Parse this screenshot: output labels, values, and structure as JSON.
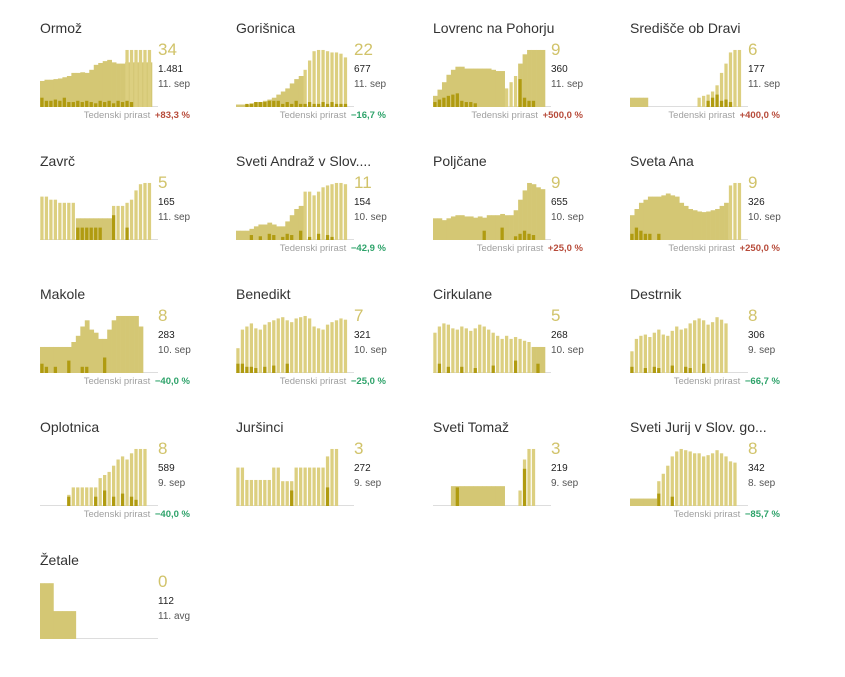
{
  "colors": {
    "area": "#d4c774",
    "bar": "#dccf80",
    "dark": "#b09b10",
    "baseline": "#dddddd",
    "up": "#b74b3a",
    "down": "#2ea36a"
  },
  "growth_label": "Tedenski prirast",
  "tiles": [
    {
      "name": "Ormož",
      "big": "34",
      "total": "1.481",
      "date": "11. sep",
      "growth": "+83,3 %",
      "dir": "up",
      "area": [
        0.42,
        0.44,
        0.44,
        0.45,
        0.46,
        0.48,
        0.5,
        0.55,
        0.55,
        0.56,
        0.55,
        0.6,
        0.68,
        0.71,
        0.74,
        0.76,
        0.72,
        0.7,
        0.7,
        0.72,
        0.72,
        0.72,
        0.72,
        0.72,
        0.72
      ],
      "bars": [
        0,
        0,
        0,
        0,
        0,
        0,
        0,
        0,
        0,
        0,
        0,
        0,
        0,
        0,
        0,
        0,
        0,
        0,
        0,
        0.92,
        0.92,
        0.92,
        0.92,
        0.92,
        0.92
      ],
      "dark": [
        0.15,
        0.1,
        0.1,
        0.12,
        0.1,
        0.15,
        0.08,
        0.08,
        0.1,
        0.08,
        0.1,
        0.08,
        0.06,
        0.1,
        0.08,
        0.1,
        0.06,
        0.1,
        0.08,
        0.1,
        0.08,
        0,
        0,
        0,
        0
      ]
    },
    {
      "name": "Gorišnica",
      "big": "22",
      "total": "677",
      "date": "11. sep",
      "growth": "−16,7 %",
      "dir": "down",
      "area": [
        0.04,
        0.04,
        0.04,
        0.06,
        0.08,
        0.08,
        0.1,
        0.12,
        0.15,
        0.2,
        0.25,
        0.3,
        0.38,
        0.45,
        0.5,
        0,
        0,
        0,
        0,
        0,
        0,
        0,
        0,
        0,
        0
      ],
      "bars": [
        0,
        0,
        0,
        0,
        0,
        0,
        0,
        0,
        0,
        0,
        0,
        0,
        0,
        0,
        0,
        0.6,
        0.75,
        0.9,
        0.92,
        0.92,
        0.9,
        0.88,
        0.88,
        0.86,
        0.8
      ],
      "dark": [
        0,
        0,
        0.05,
        0.05,
        0.08,
        0.08,
        0.08,
        0.1,
        0.1,
        0.1,
        0.05,
        0.08,
        0.05,
        0.1,
        0.05,
        0.05,
        0.08,
        0.05,
        0.05,
        0.08,
        0.05,
        0.08,
        0.05,
        0.05,
        0.05
      ]
    },
    {
      "name": "Lovrenc na Pohorju",
      "big": "9",
      "total": "360",
      "date": "11. sep",
      "growth": "+500,0 %",
      "dir": "up",
      "area": [
        0.18,
        0.28,
        0.4,
        0.52,
        0.6,
        0.65,
        0.65,
        0.62,
        0.62,
        0.62,
        0.62,
        0.62,
        0.62,
        0.6,
        0.58,
        0.58,
        0,
        0,
        0,
        0.7,
        0.85,
        0.92,
        0.92,
        0.92,
        0.92
      ],
      "bars": [
        0,
        0,
        0,
        0,
        0,
        0,
        0,
        0,
        0,
        0,
        0,
        0,
        0,
        0,
        0,
        0,
        0.3,
        0.4,
        0.5,
        0,
        0,
        0,
        0,
        0,
        0
      ],
      "dark": [
        0.08,
        0.12,
        0.15,
        0.18,
        0.2,
        0.22,
        0.1,
        0.08,
        0.08,
        0.06,
        0,
        0,
        0,
        0,
        0,
        0,
        0,
        0,
        0,
        0.45,
        0.15,
        0.1,
        0.1,
        0,
        0
      ]
    },
    {
      "name": "Središče ob Dravi",
      "big": "6",
      "total": "177",
      "date": "11. sep",
      "growth": "+400,0 %",
      "dir": "up",
      "area": [
        0.15,
        0.15,
        0.15,
        0.15,
        0,
        0,
        0,
        0,
        0,
        0,
        0,
        0,
        0,
        0,
        0,
        0,
        0,
        0,
        0,
        0,
        0,
        0,
        0,
        0,
        0
      ],
      "bars": [
        0,
        0,
        0,
        0,
        0,
        0,
        0,
        0,
        0,
        0,
        0,
        0,
        0,
        0,
        0,
        0.15,
        0.18,
        0.2,
        0.25,
        0.35,
        0.55,
        0.7,
        0.88,
        0.92,
        0.92
      ],
      "dark": [
        0,
        0,
        0,
        0,
        0,
        0,
        0,
        0,
        0,
        0,
        0,
        0,
        0,
        0,
        0,
        0,
        0,
        0.1,
        0.15,
        0.2,
        0.1,
        0.12,
        0.08,
        0,
        0
      ]
    },
    {
      "name": "Zavrč",
      "big": "5",
      "total": "165",
      "date": "11. sep",
      "growth": "",
      "dir": "up",
      "area": [
        0,
        0,
        0,
        0,
        0,
        0,
        0,
        0,
        0.35,
        0.35,
        0.35,
        0.35,
        0.35,
        0.35,
        0.35,
        0.35,
        0,
        0,
        0,
        0,
        0,
        0,
        0,
        0,
        0
      ],
      "bars": [
        0.7,
        0.7,
        0.65,
        0.65,
        0.6,
        0.6,
        0.6,
        0.6,
        0,
        0,
        0,
        0,
        0,
        0,
        0,
        0,
        0.55,
        0.55,
        0.55,
        0.6,
        0.65,
        0.8,
        0.9,
        0.92,
        0.92
      ],
      "dark": [
        0,
        0,
        0,
        0,
        0,
        0,
        0,
        0,
        0.2,
        0.2,
        0.2,
        0.2,
        0.2,
        0.2,
        0,
        0,
        0.4,
        0,
        0,
        0.2,
        0,
        0,
        0,
        0,
        0
      ]
    },
    {
      "name": "Sveti Andraž v Slov....",
      "big": "11",
      "total": "154",
      "date": "10. sep",
      "growth": "−42,9 %",
      "dir": "down",
      "area": [
        0.15,
        0.15,
        0.15,
        0.18,
        0.22,
        0.25,
        0.25,
        0.28,
        0.25,
        0.22,
        0.22,
        0.3,
        0.4,
        0.5,
        0.55,
        0,
        0,
        0,
        0,
        0,
        0,
        0,
        0,
        0,
        0
      ],
      "bars": [
        0,
        0,
        0,
        0,
        0,
        0,
        0,
        0,
        0,
        0,
        0,
        0,
        0,
        0,
        0,
        0.78,
        0.78,
        0.72,
        0.78,
        0.85,
        0.88,
        0.9,
        0.92,
        0.92,
        0.9
      ],
      "dark": [
        0,
        0,
        0,
        0.08,
        0,
        0.06,
        0,
        0.1,
        0.08,
        0,
        0.05,
        0.1,
        0.08,
        0,
        0.15,
        0,
        0.05,
        0,
        0.1,
        0,
        0.08,
        0.05,
        0,
        0,
        0
      ]
    },
    {
      "name": "Poljčane",
      "big": "9",
      "total": "655",
      "date": "10. sep",
      "growth": "+25,0 %",
      "dir": "up",
      "area": [
        0.35,
        0.35,
        0.32,
        0.35,
        0.38,
        0.4,
        0.4,
        0.38,
        0.38,
        0.36,
        0.38,
        0.36,
        0.4,
        0.4,
        0.4,
        0.42,
        0.4,
        0.4,
        0.48,
        0.65,
        0.8,
        0.92,
        0.9,
        0.85,
        0.82
      ],
      "bars": [
        0,
        0,
        0,
        0,
        0,
        0,
        0,
        0,
        0,
        0,
        0,
        0,
        0,
        0,
        0,
        0,
        0,
        0,
        0,
        0,
        0,
        0,
        0,
        0,
        0
      ],
      "dark": [
        0,
        0,
        0,
        0,
        0,
        0,
        0,
        0,
        0,
        0,
        0,
        0.15,
        0,
        0,
        0,
        0.2,
        0,
        0,
        0.06,
        0.1,
        0.15,
        0.1,
        0.08,
        0,
        0
      ]
    },
    {
      "name": "Sveta Ana",
      "big": "9",
      "total": "326",
      "date": "10. sep",
      "growth": "+250,0 %",
      "dir": "up",
      "area": [
        0.4,
        0.5,
        0.6,
        0.65,
        0.7,
        0.7,
        0.7,
        0.72,
        0.75,
        0.72,
        0.7,
        0.6,
        0.55,
        0.5,
        0.48,
        0.46,
        0.45,
        0.46,
        0.48,
        0.5,
        0.55,
        0.6,
        0,
        0,
        0
      ],
      "bars": [
        0,
        0,
        0,
        0,
        0,
        0,
        0,
        0,
        0,
        0,
        0,
        0,
        0,
        0,
        0,
        0,
        0,
        0,
        0,
        0,
        0,
        0,
        0.88,
        0.92,
        0.92
      ],
      "dark": [
        0.1,
        0.2,
        0.15,
        0.1,
        0.1,
        0,
        0.1,
        0,
        0,
        0,
        0,
        0,
        0,
        0,
        0,
        0,
        0,
        0,
        0,
        0,
        0,
        0,
        0,
        0,
        0
      ]
    },
    {
      "name": "Makole",
      "big": "8",
      "total": "283",
      "date": "10. sep",
      "growth": "−40,0 %",
      "dir": "down",
      "area": [
        0.42,
        0.42,
        0.42,
        0.42,
        0.42,
        0.42,
        0.42,
        0.5,
        0.6,
        0.75,
        0.85,
        0.7,
        0.65,
        0.55,
        0.55,
        0.7,
        0.85,
        0.92,
        0.92,
        0.92,
        0.92,
        0.92,
        0.75,
        0,
        0
      ],
      "bars": [
        0,
        0,
        0,
        0,
        0,
        0,
        0,
        0,
        0,
        0,
        0,
        0,
        0,
        0,
        0,
        0,
        0,
        0,
        0,
        0,
        0,
        0,
        0,
        0,
        0
      ],
      "dark": [
        0.15,
        0.1,
        0,
        0.1,
        0,
        0,
        0.2,
        0,
        0,
        0.1,
        0.1,
        0,
        0,
        0,
        0.25,
        0,
        0,
        0,
        0,
        0,
        0,
        0,
        0,
        0,
        0
      ]
    },
    {
      "name": "Benedikt",
      "big": "7",
      "total": "321",
      "date": "10. sep",
      "growth": "−25,0 %",
      "dir": "down",
      "area": [
        0,
        0,
        0,
        0,
        0,
        0,
        0,
        0,
        0,
        0,
        0,
        0,
        0,
        0,
        0,
        0,
        0,
        0,
        0,
        0,
        0,
        0,
        0,
        0,
        0
      ],
      "bars": [
        0.4,
        0.7,
        0.75,
        0.8,
        0.72,
        0.7,
        0.78,
        0.82,
        0.85,
        0.88,
        0.9,
        0.85,
        0.82,
        0.88,
        0.9,
        0.92,
        0.88,
        0.75,
        0.72,
        0.7,
        0.78,
        0.82,
        0.85,
        0.88,
        0.86
      ],
      "dark": [
        0.15,
        0.15,
        0.1,
        0.1,
        0.08,
        0,
        0.1,
        0,
        0.12,
        0,
        0,
        0.15,
        0,
        0,
        0,
        0,
        0,
        0,
        0,
        0,
        0,
        0,
        0,
        0,
        0
      ]
    },
    {
      "name": "Cirkulane",
      "big": "5",
      "total": "268",
      "date": "10. sep",
      "growth": "",
      "dir": "down",
      "area": [
        0,
        0,
        0,
        0,
        0,
        0,
        0,
        0,
        0,
        0,
        0,
        0,
        0,
        0,
        0,
        0,
        0,
        0,
        0,
        0,
        0,
        0,
        0.42,
        0.42,
        0.42
      ],
      "bars": [
        0.65,
        0.75,
        0.8,
        0.78,
        0.72,
        0.7,
        0.75,
        0.72,
        0.68,
        0.72,
        0.78,
        0.75,
        0.7,
        0.65,
        0.6,
        0.55,
        0.6,
        0.55,
        0.58,
        0.55,
        0.52,
        0.5,
        0,
        0,
        0
      ],
      "dark": [
        0,
        0.15,
        0,
        0.1,
        0,
        0,
        0.1,
        0,
        0,
        0.08,
        0,
        0,
        0,
        0.12,
        0,
        0,
        0,
        0,
        0.2,
        0,
        0,
        0,
        0,
        0.15,
        0
      ]
    },
    {
      "name": "Destrnik",
      "big": "8",
      "total": "306",
      "date": "9. sep",
      "growth": "−66,7 %",
      "dir": "down",
      "area": [
        0,
        0,
        0,
        0,
        0,
        0,
        0,
        0,
        0,
        0,
        0,
        0,
        0,
        0,
        0,
        0,
        0,
        0,
        0,
        0,
        0,
        0,
        0,
        0,
        0
      ],
      "bars": [
        0.35,
        0.55,
        0.6,
        0.62,
        0.58,
        0.65,
        0.7,
        0.62,
        0.6,
        0.68,
        0.75,
        0.7,
        0.72,
        0.8,
        0.85,
        0.88,
        0.85,
        0.78,
        0.82,
        0.9,
        0.86,
        0.8,
        0,
        0,
        0
      ],
      "dark": [
        0.1,
        0,
        0,
        0.08,
        0,
        0.1,
        0.08,
        0,
        0,
        0.12,
        0,
        0,
        0.1,
        0.08,
        0,
        0,
        0.15,
        0,
        0,
        0,
        0,
        0,
        0,
        0,
        0
      ]
    },
    {
      "name": "Oplotnica",
      "big": "8",
      "total": "589",
      "date": "9. sep",
      "growth": "−40,0 %",
      "dir": "down",
      "area": [
        0,
        0,
        0,
        0,
        0,
        0,
        0,
        0,
        0,
        0,
        0,
        0,
        0,
        0,
        0,
        0,
        0,
        0,
        0,
        0,
        0,
        0,
        0,
        0,
        0
      ],
      "bars": [
        0,
        0,
        0,
        0,
        0,
        0,
        0.18,
        0.3,
        0.3,
        0.3,
        0.3,
        0.3,
        0.3,
        0.45,
        0.5,
        0.55,
        0.65,
        0.75,
        0.8,
        0.75,
        0.85,
        0.92,
        0.92,
        0.92,
        0
      ],
      "dark": [
        0,
        0,
        0,
        0,
        0,
        0,
        0.15,
        0,
        0,
        0,
        0,
        0,
        0.15,
        0,
        0.25,
        0,
        0.15,
        0,
        0.2,
        0,
        0.15,
        0.1,
        0,
        0,
        0
      ]
    },
    {
      "name": "Juršinci",
      "big": "3",
      "total": "272",
      "date": "9. sep",
      "growth": "",
      "dir": "down",
      "area": [
        0,
        0,
        0,
        0,
        0,
        0,
        0,
        0,
        0,
        0,
        0,
        0,
        0,
        0,
        0,
        0,
        0,
        0,
        0,
        0,
        0,
        0,
        0,
        0,
        0
      ],
      "bars": [
        0.62,
        0.62,
        0.42,
        0.42,
        0.42,
        0.42,
        0.42,
        0.42,
        0.62,
        0.62,
        0.4,
        0.4,
        0.4,
        0.62,
        0.62,
        0.62,
        0.62,
        0.62,
        0.62,
        0.62,
        0.8,
        0.92,
        0.92,
        0,
        0
      ],
      "dark": [
        0,
        0,
        0,
        0,
        0,
        0,
        0,
        0,
        0,
        0,
        0,
        0,
        0.25,
        0,
        0,
        0,
        0,
        0,
        0,
        0,
        0.3,
        0,
        0,
        0,
        0
      ]
    },
    {
      "name": "Sveti Tomaž",
      "big": "3",
      "total": "219",
      "date": "9. sep",
      "growth": "",
      "dir": "down",
      "area": [
        0,
        0,
        0,
        0,
        0.32,
        0.32,
        0.32,
        0.32,
        0.32,
        0.32,
        0.32,
        0.32,
        0.32,
        0.32,
        0.32,
        0.32,
        0,
        0,
        0,
        0,
        0,
        0,
        0,
        0,
        0
      ],
      "bars": [
        0,
        0,
        0,
        0,
        0,
        0,
        0,
        0,
        0,
        0,
        0,
        0,
        0,
        0,
        0,
        0,
        0,
        0,
        0,
        0.25,
        0.75,
        0.92,
        0.92,
        0,
        0
      ],
      "dark": [
        0,
        0,
        0,
        0,
        0,
        0.3,
        0,
        0,
        0,
        0,
        0,
        0,
        0,
        0,
        0,
        0,
        0,
        0,
        0,
        0,
        0.6,
        0,
        0,
        0,
        0
      ]
    },
    {
      "name": "Sveti Jurij v Slov. go...",
      "big": "8",
      "total": "342",
      "date": "8. sep",
      "growth": "−85,7 %",
      "dir": "down",
      "area": [
        0.12,
        0.12,
        0.12,
        0.12,
        0.12,
        0.12,
        0,
        0,
        0,
        0,
        0,
        0,
        0,
        0,
        0,
        0,
        0,
        0,
        0,
        0,
        0,
        0,
        0,
        0,
        0
      ],
      "bars": [
        0,
        0,
        0,
        0,
        0,
        0,
        0.4,
        0.52,
        0.65,
        0.8,
        0.88,
        0.92,
        0.9,
        0.88,
        0.85,
        0.85,
        0.8,
        0.82,
        0.85,
        0.9,
        0.85,
        0.8,
        0.72,
        0.7,
        0
      ],
      "dark": [
        0,
        0,
        0,
        0,
        0,
        0,
        0.2,
        0,
        0,
        0.15,
        0,
        0,
        0,
        0,
        0,
        0,
        0,
        0,
        0,
        0,
        0,
        0,
        0,
        0,
        0
      ]
    },
    {
      "name": "Žetale",
      "big": "0",
      "total": "112",
      "date": "11. avg",
      "growth": "",
      "dir": "down",
      "area": [
        0.9,
        0.9,
        0.9,
        0.45,
        0.45,
        0.45,
        0.45,
        0.45,
        0,
        0,
        0,
        0,
        0,
        0,
        0,
        0,
        0,
        0,
        0,
        0,
        0,
        0,
        0,
        0,
        0
      ],
      "bars": [
        0,
        0,
        0,
        0,
        0,
        0,
        0,
        0,
        0,
        0,
        0,
        0,
        0,
        0,
        0,
        0,
        0,
        0,
        0,
        0,
        0,
        0,
        0,
        0,
        0
      ],
      "dark": [
        0,
        0,
        0,
        0,
        0,
        0,
        0,
        0,
        0,
        0,
        0,
        0,
        0,
        0,
        0,
        0,
        0,
        0,
        0,
        0,
        0,
        0,
        0,
        0,
        0
      ]
    }
  ]
}
